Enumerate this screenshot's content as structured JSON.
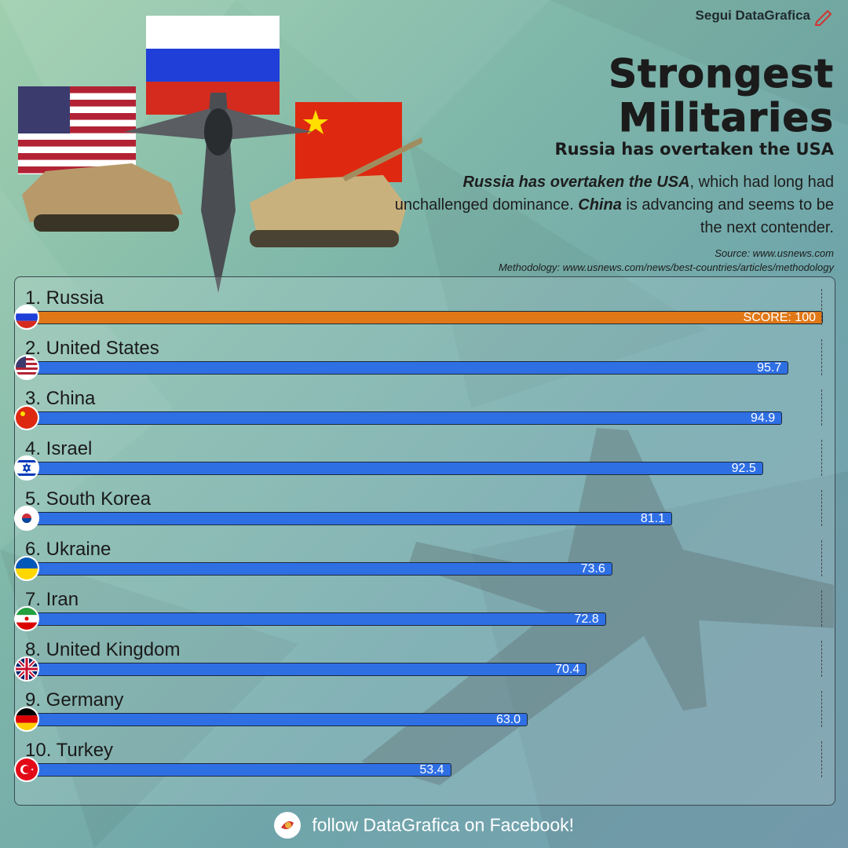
{
  "brand": "Segui DataGrafica",
  "title_line1": "Strongest",
  "title_line2": "Militaries",
  "subtitle": "Russia has overtaken the USA",
  "desc": {
    "em1": "Russia has overtaken the USA",
    "t1": ", which had long had unchallenged dominance. ",
    "em2": "China",
    "t2": " is advancing and seems to be the next contender."
  },
  "source": "Source: www.usnews.com",
  "methodology": "Methodology: www.usnews.com/news/best-countries/articles/methodology",
  "footer": "follow DataGrafica on Facebook!",
  "colors": {
    "top_bar": "#e07817",
    "bar": "#2f6fe4"
  },
  "chart_data": {
    "type": "bar",
    "orientation": "horizontal",
    "xlim": [
      0,
      100
    ],
    "categories": [
      "1. Russia",
      "2. United States",
      "3. China",
      "4. Israel",
      "5. South Korea",
      "6. Ukraine",
      "7. Iran",
      "8. United Kingdom",
      "9. Germany",
      "10. Turkey"
    ],
    "values": [
      100,
      95.7,
      94.9,
      92.5,
      81.1,
      73.6,
      72.8,
      70.4,
      63.0,
      53.4
    ],
    "value_labels": [
      "SCORE: 100",
      "95.7",
      "94.9",
      "92.5",
      "81.1",
      "73.6",
      "72.8",
      "70.4",
      "63.0",
      "53.4"
    ],
    "flag_icons": [
      "russia-flag-icon",
      "usa-flag-icon",
      "china-flag-icon",
      "israel-flag-icon",
      "south-korea-flag-icon",
      "ukraine-flag-icon",
      "iran-flag-icon",
      "uk-flag-icon",
      "germany-flag-icon",
      "turkey-flag-icon"
    ]
  }
}
